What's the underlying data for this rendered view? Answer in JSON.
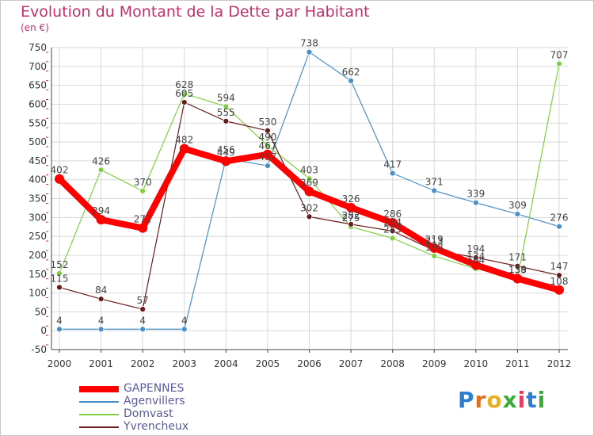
{
  "chart_data": {
    "type": "line",
    "title": "Evolution du Montant de la Dette par Habitant",
    "subtitle": "(en €)",
    "ylim": [
      -50,
      750
    ],
    "yticks": [
      -50,
      0,
      50,
      100,
      150,
      200,
      250,
      300,
      350,
      400,
      450,
      500,
      550,
      600,
      650,
      700,
      750
    ],
    "x": [
      "2000",
      "2001",
      "2002",
      "2003",
      "2004",
      "2005",
      "2006",
      "2007",
      "2008",
      "2009",
      "2010",
      "2011",
      "2012"
    ],
    "grid": true,
    "legend_position": "bottom-left",
    "series": [
      {
        "name": "GAPENNES",
        "color": "#ff0000",
        "values": [
          402,
          294,
          272,
          482,
          449,
          467,
          369,
          326,
          286,
          219,
          174,
          138,
          108
        ]
      },
      {
        "name": "Agenvillers",
        "color": "#4a90c8",
        "values": [
          4,
          4,
          4,
          4,
          456,
          437,
          738,
          662,
          417,
          371,
          339,
          309,
          276
        ]
      },
      {
        "name": "Domvast",
        "color": "#7fd040",
        "values": [
          152,
          426,
          370,
          628,
          594,
          490,
          403,
          275,
          245,
          198,
          164,
          139,
          707
        ]
      },
      {
        "name": "Yvrencheux",
        "color": "#6b1a1a",
        "values": [
          115,
          84,
          57,
          605,
          555,
          530,
          302,
          282,
          264,
          213,
          194,
          171,
          147
        ]
      }
    ]
  },
  "logo": {
    "letters": [
      {
        "ch": "P",
        "color": "#2a7fd4"
      },
      {
        "ch": "r",
        "color": "#e07020"
      },
      {
        "ch": "o",
        "color": "#e8b020"
      },
      {
        "ch": "x",
        "color": "#3aaa3a"
      },
      {
        "ch": "i",
        "color": "#e04060"
      },
      {
        "ch": "t",
        "color": "#2a7fd4"
      },
      {
        "ch": "i",
        "color": "#3aaa3a"
      }
    ]
  }
}
